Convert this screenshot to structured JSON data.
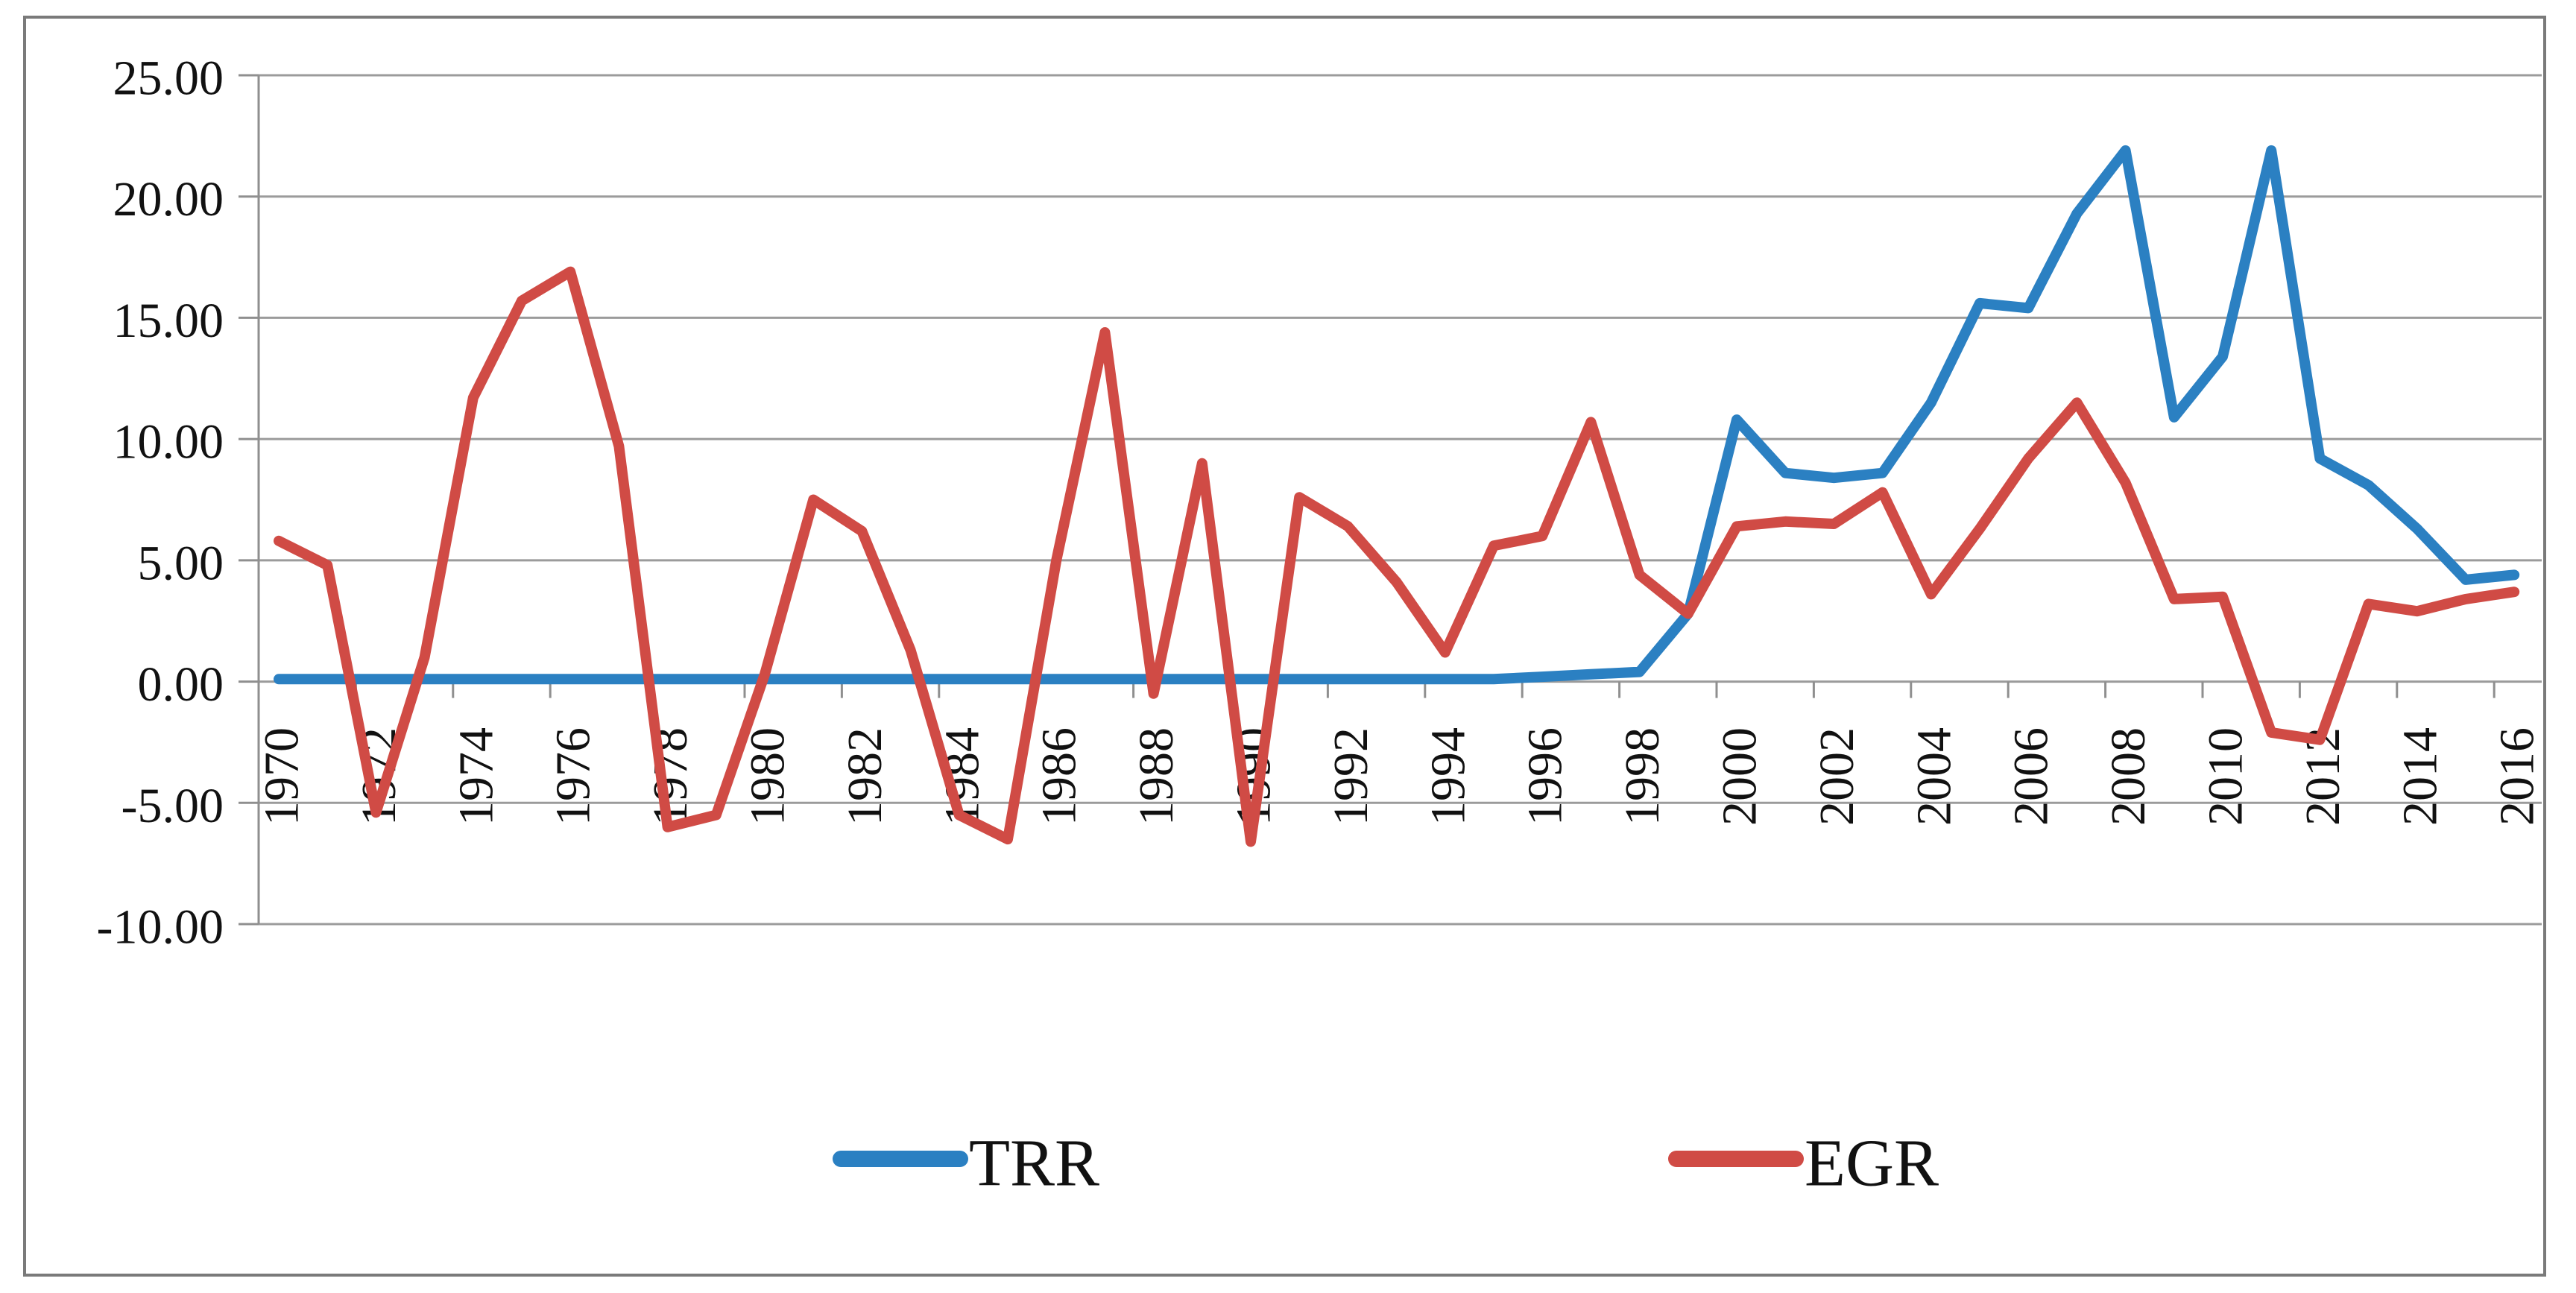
{
  "chart_data": {
    "type": "line",
    "title": "",
    "categories": [
      1970,
      1971,
      1972,
      1973,
      1974,
      1975,
      1976,
      1977,
      1978,
      1979,
      1980,
      1981,
      1982,
      1983,
      1984,
      1985,
      1986,
      1987,
      1988,
      1989,
      1990,
      1991,
      1992,
      1993,
      1994,
      1995,
      1996,
      1997,
      1998,
      1999,
      2000,
      2001,
      2002,
      2003,
      2004,
      2005,
      2006,
      2007,
      2008,
      2009,
      2010,
      2011,
      2012,
      2013,
      2014,
      2015,
      2016
    ],
    "x_tick_labels": [
      "1970",
      "1972",
      "1974",
      "1976",
      "1978",
      "1980",
      "1982",
      "1984",
      "1986",
      "1988",
      "1990",
      "1992",
      "1994",
      "1996",
      "1998",
      "2000",
      "2002",
      "2004",
      "2006",
      "2008",
      "2010",
      "2012",
      "2014",
      "2016"
    ],
    "y_ticks": [
      25,
      20,
      15,
      10,
      5,
      0,
      -5,
      -10
    ],
    "y_tick_labels": [
      "25.00",
      "20.00",
      "15.00",
      "10.00",
      "5.00",
      "0.00",
      "-5.00",
      "-10.00"
    ],
    "ylim": [
      -10,
      25
    ],
    "grid": true,
    "legend_position": "bottom-center",
    "series": [
      {
        "name": "TRR",
        "color": "#2b80c2",
        "values": [
          0.1,
          0.1,
          0.1,
          0.1,
          0.1,
          0.1,
          0.1,
          0.1,
          0.1,
          0.1,
          0.1,
          0.1,
          0.1,
          0.1,
          0.1,
          0.1,
          0.1,
          0.1,
          0.1,
          0.1,
          0.1,
          0.1,
          0.1,
          0.1,
          0.1,
          0.1,
          0.2,
          0.3,
          0.4,
          2.8,
          10.8,
          8.6,
          8.4,
          8.6,
          11.5,
          15.6,
          15.4,
          19.3,
          21.9,
          10.9,
          13.4,
          21.9,
          9.2,
          8.1,
          6.3,
          4.2,
          4.4
        ]
      },
      {
        "name": "EGR",
        "color": "#d04b45",
        "values": [
          5.8,
          4.8,
          -5.4,
          1.0,
          11.7,
          15.7,
          16.9,
          9.7,
          -6.0,
          -5.5,
          0.3,
          7.5,
          6.2,
          1.3,
          -5.5,
          -6.5,
          5.0,
          14.4,
          -0.5,
          9.0,
          -6.6,
          7.6,
          6.4,
          4.1,
          1.2,
          5.6,
          6.0,
          10.7,
          4.4,
          2.8,
          6.4,
          6.6,
          6.5,
          7.8,
          3.6,
          6.3,
          9.2,
          11.5,
          8.2,
          3.4,
          3.5,
          -2.1,
          -2.4,
          3.2,
          2.9,
          3.4,
          3.7
        ]
      }
    ]
  },
  "style_colors": {
    "background": "#ffffff",
    "frame_border": "#7a7a7a",
    "gridline": "#9b9b9b",
    "axis": "#8f8f8f",
    "text": "#111111"
  }
}
